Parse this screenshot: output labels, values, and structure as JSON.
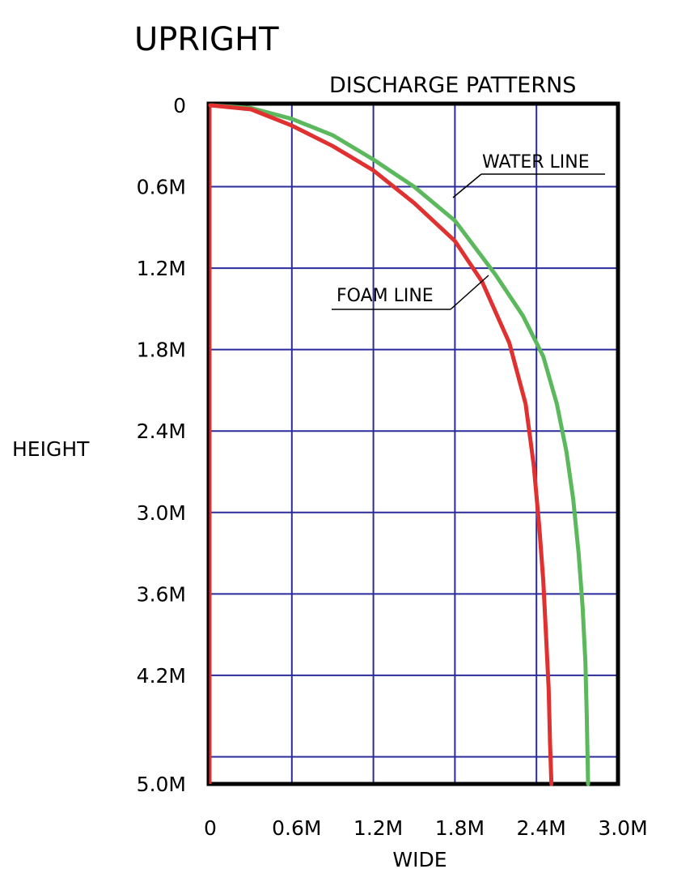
{
  "chart_data": {
    "type": "line",
    "title": "UPRIGHT",
    "subtitle": "DISCHARGE PATTERNS",
    "xlabel": "WIDE",
    "ylabel": "HEIGHT",
    "xlim": [
      0,
      3.0
    ],
    "ylim": [
      0,
      5.0
    ],
    "y_inverted": true,
    "grid": true,
    "x_ticks": [
      {
        "value": 0,
        "label": "0"
      },
      {
        "value": 0.6,
        "label": "0.6M"
      },
      {
        "value": 1.2,
        "label": "1.2M"
      },
      {
        "value": 1.8,
        "label": "1.8M"
      },
      {
        "value": 2.4,
        "label": "2.4M"
      },
      {
        "value": 3.0,
        "label": "3.0M"
      }
    ],
    "y_ticks": [
      {
        "value": 0,
        "label": "0"
      },
      {
        "value": 0.6,
        "label": "0.6M"
      },
      {
        "value": 1.2,
        "label": "1.2M"
      },
      {
        "value": 1.8,
        "label": "1.8M"
      },
      {
        "value": 2.4,
        "label": "2.4M"
      },
      {
        "value": 3.0,
        "label": "3.0M"
      },
      {
        "value": 3.6,
        "label": "3.6M"
      },
      {
        "value": 4.2,
        "label": "4.2M"
      },
      {
        "value": 5.0,
        "label": "5.0M"
      }
    ],
    "extra_gridlines_y": [
      4.8
    ],
    "series": [
      {
        "name": "WATER LINE",
        "color": "#5cb85c",
        "x": [
          0,
          0.3,
          0.6,
          0.9,
          1.2,
          1.5,
          1.8,
          2.1,
          2.3,
          2.45,
          2.55,
          2.62,
          2.67,
          2.71,
          2.74,
          2.76,
          2.77,
          2.78
        ],
        "y": [
          0,
          0.02,
          0.1,
          0.22,
          0.4,
          0.6,
          0.85,
          1.25,
          1.55,
          1.85,
          2.2,
          2.55,
          2.9,
          3.3,
          3.7,
          4.1,
          4.5,
          5.0
        ]
      },
      {
        "name": "FOAM LINE",
        "color": "#e03030",
        "x": [
          0,
          0.3,
          0.6,
          0.9,
          1.2,
          1.5,
          1.8,
          2.0,
          2.2,
          2.32,
          2.38,
          2.42,
          2.45,
          2.47,
          2.49,
          2.5,
          2.51
        ],
        "y": [
          0,
          0.03,
          0.15,
          0.3,
          0.48,
          0.72,
          1.0,
          1.3,
          1.75,
          2.2,
          2.65,
          3.1,
          3.5,
          3.9,
          4.3,
          4.7,
          5.0
        ]
      }
    ],
    "annotations": [
      {
        "text": "WATER LINE",
        "series": "WATER LINE"
      },
      {
        "text": "FOAM LINE",
        "series": "FOAM LINE"
      }
    ]
  }
}
